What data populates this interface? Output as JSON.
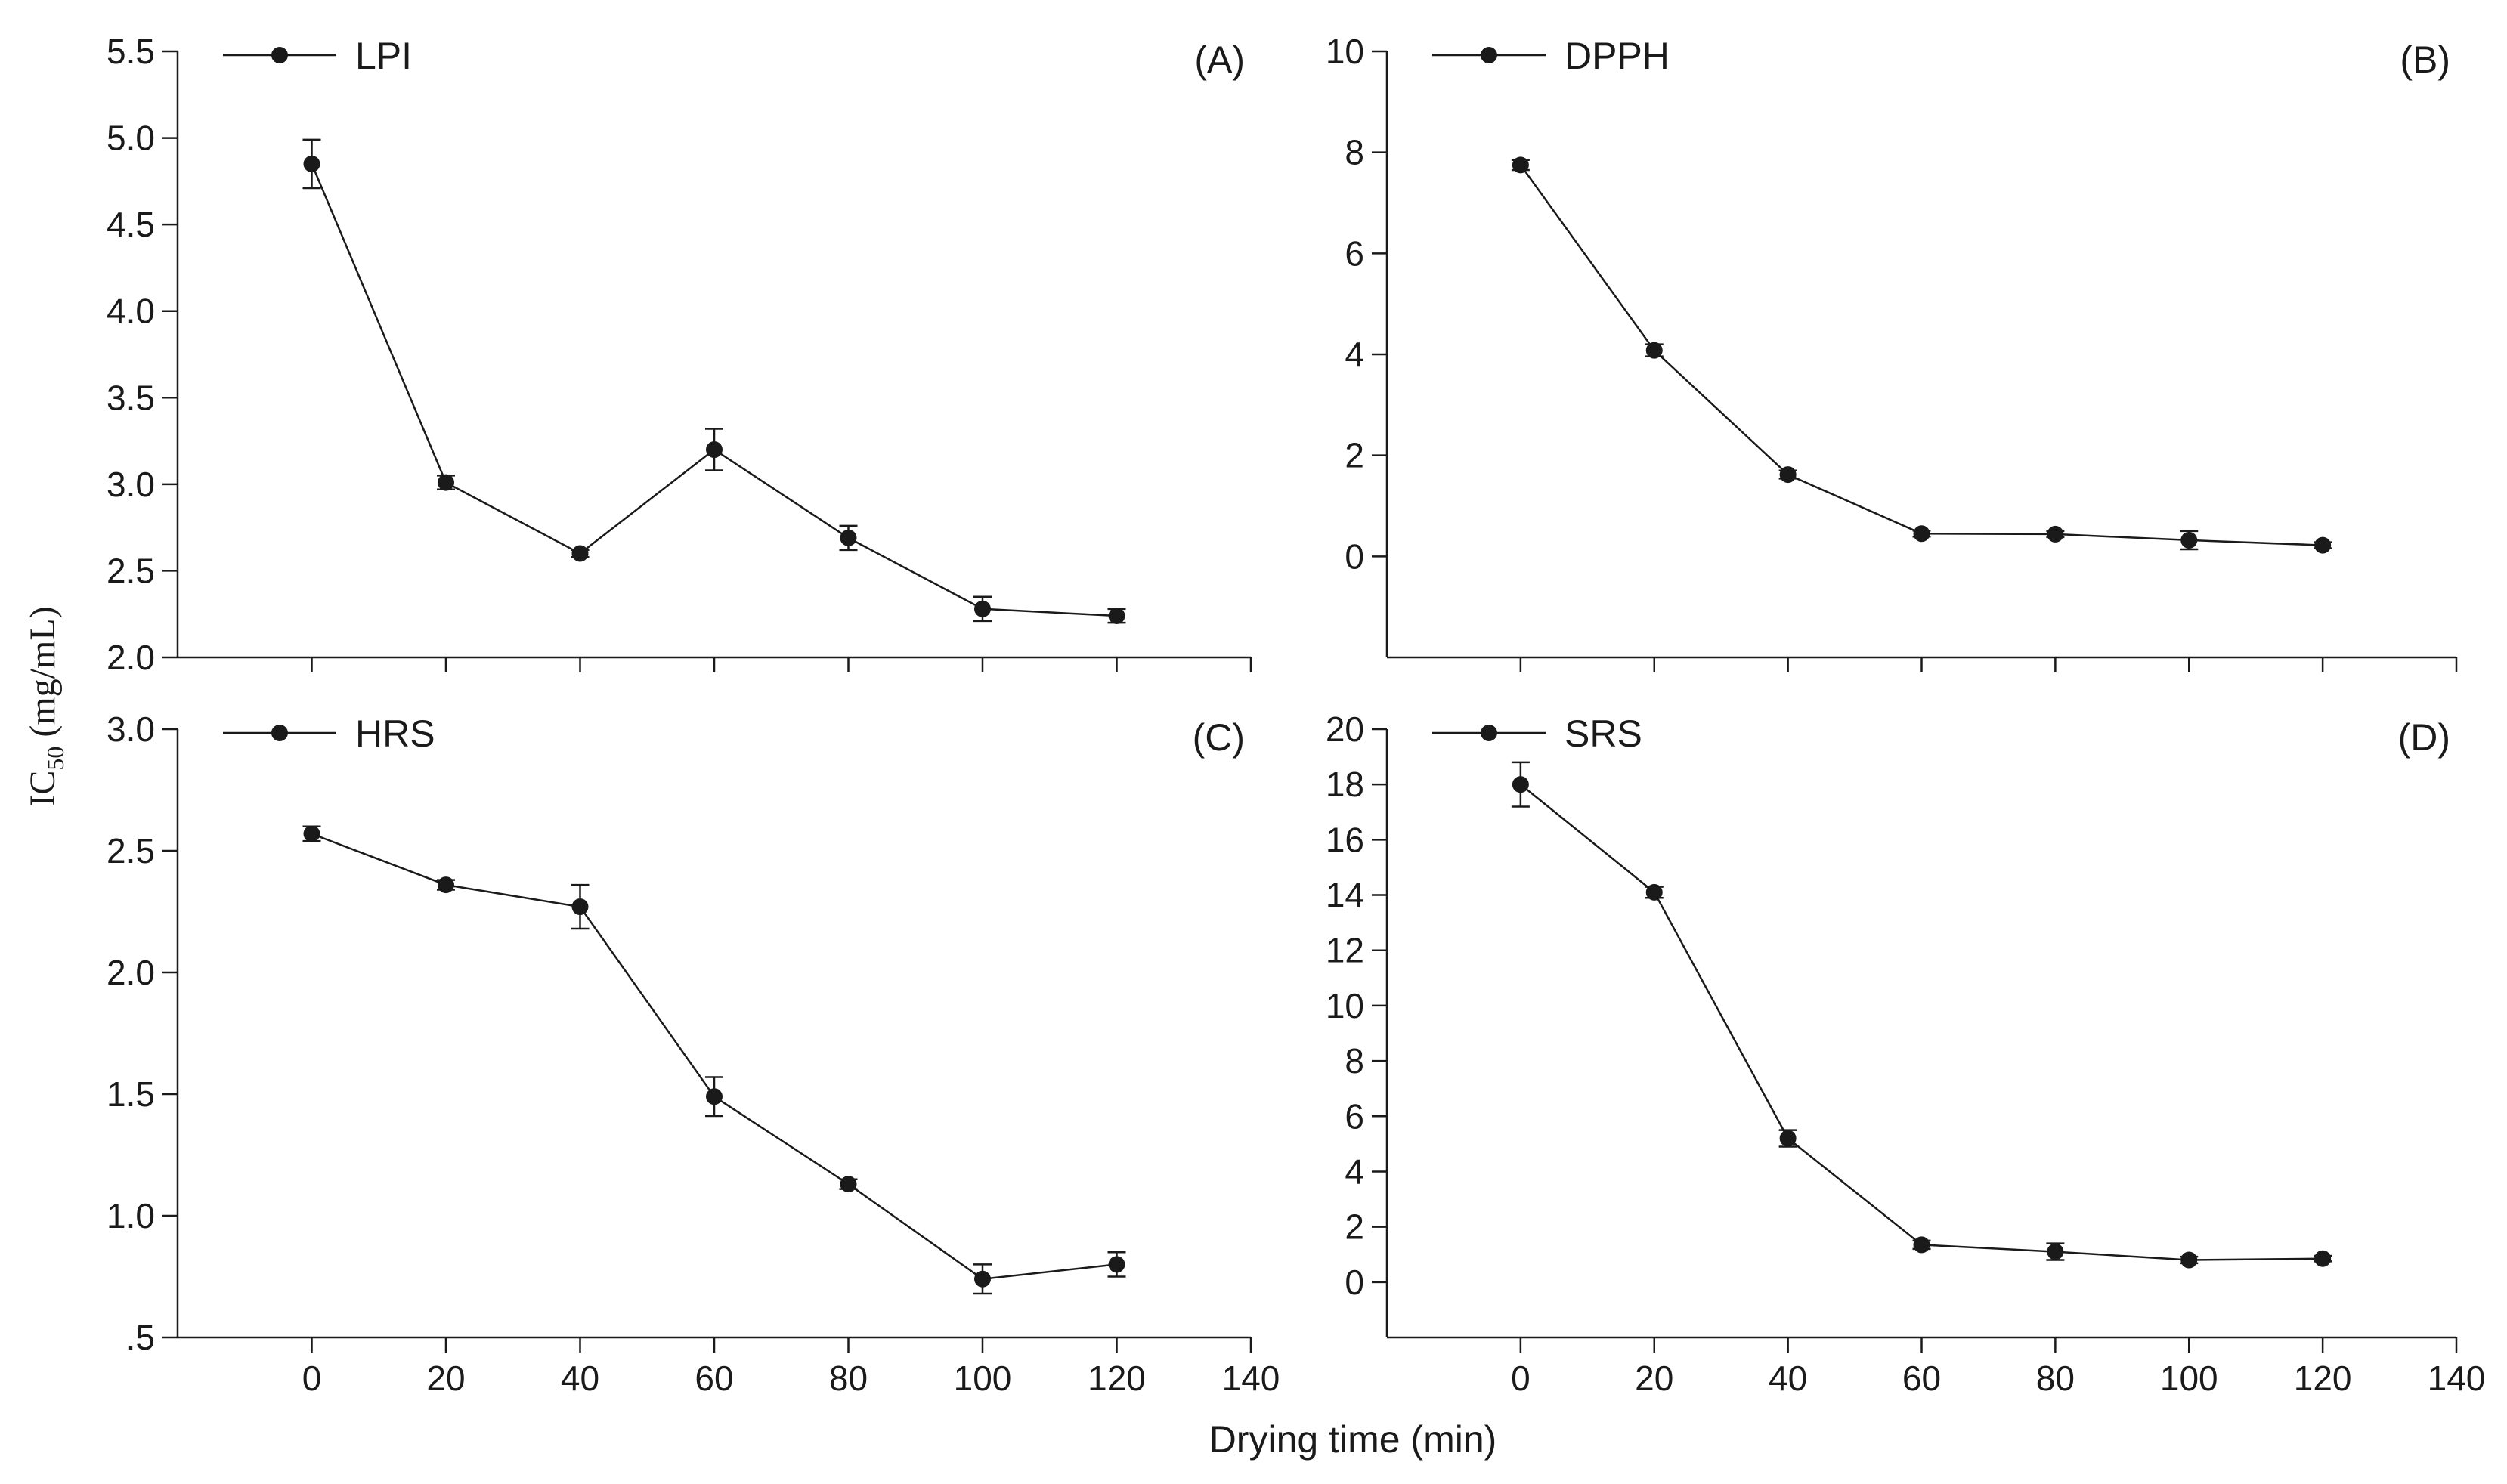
{
  "figure": {
    "x_label": "Drying time (min)",
    "y_label_main": "IC",
    "y_label_sub": "50",
    "y_label_unit": " (mg/mL)"
  },
  "chart_data": [
    {
      "type": "line",
      "panel_label": "(A)",
      "legend": "LPI",
      "x": [
        0,
        20,
        40,
        60,
        80,
        100,
        120
      ],
      "values": [
        4.85,
        3.01,
        2.6,
        3.2,
        2.69,
        2.28,
        2.24
      ],
      "errors": [
        0.14,
        0.04,
        0.02,
        0.12,
        0.07,
        0.07,
        0.04
      ],
      "xlim": [
        -20,
        140
      ],
      "ylim": [
        2.0,
        5.5
      ],
      "xticks": [
        0,
        20,
        40,
        60,
        80,
        100,
        120,
        140
      ],
      "xtick_labels": [
        "0",
        "20",
        "40",
        "60",
        "80",
        "100",
        "120",
        "140"
      ],
      "yticks": [
        2.0,
        2.5,
        3.0,
        3.5,
        4.0,
        4.5,
        5.0,
        5.5
      ],
      "ytick_labels": [
        "2.0",
        "2.5",
        "3.0",
        "3.5",
        "4.0",
        "4.5",
        "5.0",
        "5.5"
      ],
      "show_xtick_labels": false
    },
    {
      "type": "line",
      "panel_label": "(B)",
      "legend": "DPPH",
      "x": [
        0,
        20,
        40,
        60,
        80,
        100,
        120
      ],
      "values": [
        7.75,
        4.08,
        1.62,
        0.45,
        0.44,
        0.32,
        0.22
      ],
      "errors": [
        0.1,
        0.12,
        0.08,
        0.06,
        0.06,
        0.18,
        0.06
      ],
      "xlim": [
        -20,
        140
      ],
      "ylim": [
        -2,
        10
      ],
      "xticks": [
        0,
        20,
        40,
        60,
        80,
        100,
        120,
        140
      ],
      "xtick_labels": [
        "0",
        "20",
        "40",
        "60",
        "80",
        "100",
        "120",
        "140"
      ],
      "yticks": [
        0,
        2,
        4,
        6,
        8,
        10
      ],
      "ytick_labels": [
        "0",
        "2",
        "4",
        "6",
        "8",
        "10"
      ],
      "show_xtick_labels": false
    },
    {
      "type": "line",
      "panel_label": "(C)",
      "legend": "HRS",
      "x": [
        0,
        20,
        40,
        60,
        80,
        100,
        120
      ],
      "values": [
        2.57,
        2.36,
        2.27,
        1.49,
        1.13,
        0.74,
        0.8
      ],
      "errors": [
        0.03,
        0.02,
        0.09,
        0.08,
        0.02,
        0.06,
        0.05
      ],
      "xlim": [
        -20,
        140
      ],
      "ylim": [
        0.5,
        3.0
      ],
      "xticks": [
        0,
        20,
        40,
        60,
        80,
        100,
        120,
        140
      ],
      "xtick_labels": [
        "0",
        "20",
        "40",
        "60",
        "80",
        "100",
        "120",
        "140"
      ],
      "yticks": [
        0.5,
        1.0,
        1.5,
        2.0,
        2.5,
        3.0
      ],
      "ytick_labels": [
        ".5",
        "1.0",
        "1.5",
        "2.0",
        "2.5",
        "3.0"
      ],
      "show_xtick_labels": true
    },
    {
      "type": "line",
      "panel_label": "(D)",
      "legend": "SRS",
      "x": [
        0,
        20,
        40,
        60,
        80,
        100,
        120
      ],
      "values": [
        18.0,
        14.1,
        5.2,
        1.35,
        1.1,
        0.8,
        0.85
      ],
      "errors": [
        0.8,
        0.2,
        0.3,
        0.15,
        0.3,
        0.12,
        0.1
      ],
      "xlim": [
        -20,
        140
      ],
      "ylim": [
        -2,
        20
      ],
      "xticks": [
        0,
        20,
        40,
        60,
        80,
        100,
        120,
        140
      ],
      "xtick_labels": [
        "0",
        "20",
        "40",
        "60",
        "80",
        "100",
        "120",
        "140"
      ],
      "yticks": [
        0,
        2,
        4,
        6,
        8,
        10,
        12,
        14,
        16,
        18,
        20
      ],
      "ytick_labels": [
        "0",
        "2",
        "4",
        "6",
        "8",
        "10",
        "12",
        "14",
        "16",
        "18",
        "20"
      ],
      "show_xtick_labels": true
    }
  ]
}
